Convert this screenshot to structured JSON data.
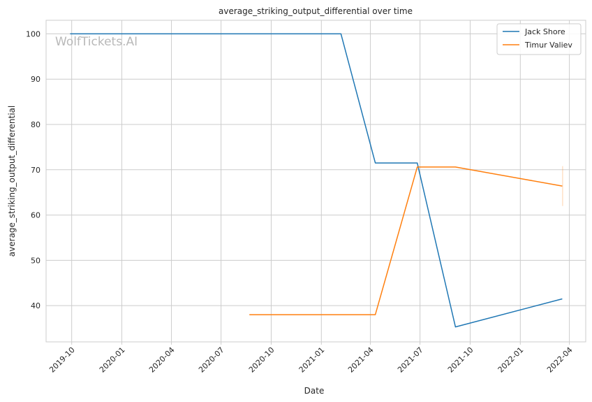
{
  "watermark": "WolfTickets.AI",
  "chart_data": {
    "type": "line",
    "title": "average_striking_output_differential over time",
    "xlabel": "Date",
    "ylabel": "average_striking_output_differential",
    "x_type": "date",
    "xlim": [
      "2019-08-15",
      "2022-05-01"
    ],
    "ylim": [
      32,
      103
    ],
    "x_ticks": [
      "2019-10-01",
      "2020-01-01",
      "2020-04-01",
      "2020-07-01",
      "2020-10-01",
      "2021-01-01",
      "2021-04-01",
      "2021-07-01",
      "2021-10-01",
      "2022-01-01",
      "2022-04-01"
    ],
    "x_tick_labels": [
      "2019-10",
      "2020-01",
      "2020-04",
      "2020-07",
      "2020-10",
      "2021-01",
      "2021-04",
      "2021-07",
      "2021-10",
      "2022-01",
      "2022-04"
    ],
    "y_ticks": [
      40,
      50,
      60,
      70,
      80,
      90,
      100
    ],
    "grid": true,
    "legend_position": "top-right",
    "series": [
      {
        "name": "Jack Shore",
        "color": "#1f77b4",
        "points": [
          {
            "x": "2019-09-28",
            "y": 100
          },
          {
            "x": "2021-02-06",
            "y": 100
          },
          {
            "x": "2021-04-10",
            "y": 71.5
          },
          {
            "x": "2021-06-26",
            "y": 71.5
          },
          {
            "x": "2021-09-04",
            "y": 35.3
          },
          {
            "x": "2022-03-19",
            "y": 41.5
          }
        ]
      },
      {
        "name": "Timur Valiev",
        "color": "#ff7f0e",
        "points": [
          {
            "x": "2020-08-22",
            "y": 38
          },
          {
            "x": "2021-04-10",
            "y": 38
          },
          {
            "x": "2021-06-26",
            "y": 70.6
          },
          {
            "x": "2021-09-04",
            "y": 70.6
          },
          {
            "x": "2022-03-19",
            "y": 66.4
          }
        ]
      }
    ]
  }
}
